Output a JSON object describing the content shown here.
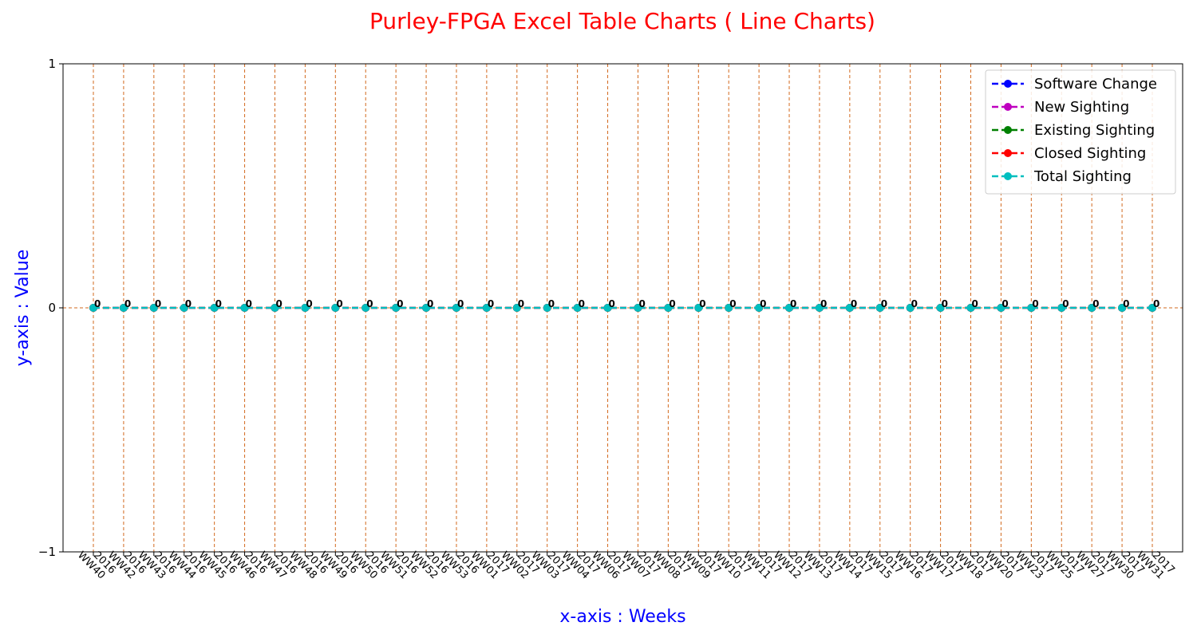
{
  "colors": {
    "title": "#ff0000",
    "axis_label": "#0000ff",
    "grid": "#d2691e"
  },
  "chart_data": {
    "type": "line",
    "title": "Purley-FPGA Excel Table Charts ( Line Charts)",
    "xlabel": "x-axis : Weeks",
    "ylabel": "y-axis : Value",
    "ylim": [
      -1,
      1
    ],
    "yticks": [
      -1,
      0,
      1
    ],
    "grid": "x-dashed, plus dashed line at y=0",
    "legend_position": "top-right",
    "categories": [
      "2016\nWW40",
      "2016\nWW42",
      "2016\nWW43",
      "2016\nWW44",
      "2016\nWW45",
      "2016\nWW46",
      "2016\nWW47",
      "2016\nWW48",
      "2016\nWW49",
      "2016\nWW50",
      "2016\nWW51",
      "2016\nWW52",
      "2016\nWW53",
      "2017\nWW01",
      "2017\nWW02",
      "2017\nWW03",
      "2017\nWW04",
      "2017\nWW06",
      "2017\nWW07",
      "2017\nWW08",
      "2017\nWW09",
      "2017\nWW10",
      "2017\nWW11",
      "2017\nWW12",
      "2017\nWW13",
      "2017\nWW14",
      "2017\nWW15",
      "2017\nWW16",
      "2017\nWW17",
      "2017\nWW18",
      "2017\nWW20",
      "2017\nWW23",
      "2017\nWW25",
      "2017\nWW27",
      "2017\nWW30",
      "2017\nWW31"
    ],
    "series": [
      {
        "name": "Software Change",
        "color": "#0000ff",
        "values": [
          0,
          0,
          0,
          0,
          0,
          0,
          0,
          0,
          0,
          0,
          0,
          0,
          0,
          0,
          0,
          0,
          0,
          0,
          0,
          0,
          0,
          0,
          0,
          0,
          0,
          0,
          0,
          0,
          0,
          0,
          0,
          0,
          0,
          0,
          0,
          0
        ]
      },
      {
        "name": "New Sighting",
        "color": "#bf00bf",
        "values": [
          0,
          0,
          0,
          0,
          0,
          0,
          0,
          0,
          0,
          0,
          0,
          0,
          0,
          0,
          0,
          0,
          0,
          0,
          0,
          0,
          0,
          0,
          0,
          0,
          0,
          0,
          0,
          0,
          0,
          0,
          0,
          0,
          0,
          0,
          0,
          0
        ]
      },
      {
        "name": "Existing Sighting",
        "color": "#008000",
        "values": [
          0,
          0,
          0,
          0,
          0,
          0,
          0,
          0,
          0,
          0,
          0,
          0,
          0,
          0,
          0,
          0,
          0,
          0,
          0,
          0,
          0,
          0,
          0,
          0,
          0,
          0,
          0,
          0,
          0,
          0,
          0,
          0,
          0,
          0,
          0,
          0
        ]
      },
      {
        "name": "Closed Sighting",
        "color": "#ff0000",
        "values": [
          0,
          0,
          0,
          0,
          0,
          0,
          0,
          0,
          0,
          0,
          0,
          0,
          0,
          0,
          0,
          0,
          0,
          0,
          0,
          0,
          0,
          0,
          0,
          0,
          0,
          0,
          0,
          0,
          0,
          0,
          0,
          0,
          0,
          0,
          0,
          0
        ]
      },
      {
        "name": "Total Sighting",
        "color": "#00bfbf",
        "values": [
          0,
          0,
          0,
          0,
          0,
          0,
          0,
          0,
          0,
          0,
          0,
          0,
          0,
          0,
          0,
          0,
          0,
          0,
          0,
          0,
          0,
          0,
          0,
          0,
          0,
          0,
          0,
          0,
          0,
          0,
          0,
          0,
          0,
          0,
          0,
          0
        ]
      }
    ],
    "data_label_series": "Total Sighting"
  }
}
